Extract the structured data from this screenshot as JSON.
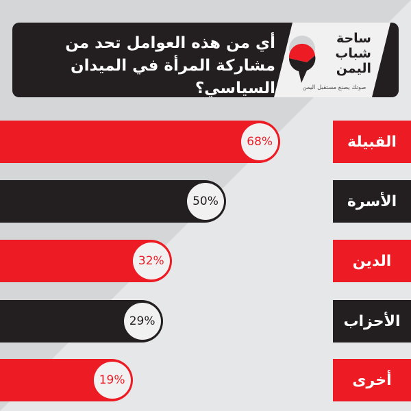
{
  "header": {
    "question": "أي من هذه العوامل تحد من مشاركة المرأة في الميدان السياسي؟",
    "logo_text": "ساحة شباب اليمن",
    "logo_tagline": "صوتك يصنع مستقبل اليمن"
  },
  "colors": {
    "red": "#ed1c24",
    "black": "#231f20",
    "background": "#e6e7e8"
  },
  "chart_data": {
    "type": "bar",
    "orientation": "horizontal",
    "categories": [
      "القبيلة",
      "الأسرة",
      "الدين",
      "الأحزاب",
      "أخرى"
    ],
    "values": [
      68,
      50,
      32,
      29,
      19
    ],
    "labels": [
      "68%",
      "50%",
      "32%",
      "29%",
      "19%"
    ],
    "bar_colors": [
      "#ed1c24",
      "#231f20",
      "#ed1c24",
      "#231f20",
      "#ed1c24"
    ],
    "unit": "%"
  }
}
